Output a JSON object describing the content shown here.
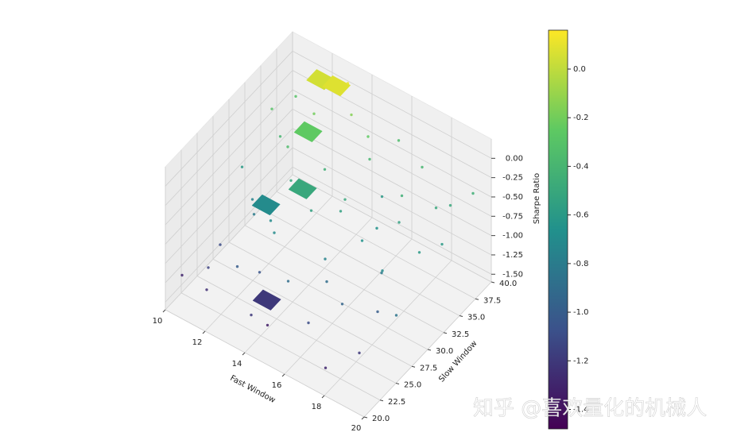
{
  "chart_data": {
    "type": "scatter3d",
    "xlabel": "Fast Window",
    "ylabel": "Slow Window",
    "zlabel": "Sharpe Ratio",
    "colormap": "viridis",
    "grid": true,
    "xlim": [
      10,
      20
    ],
    "ylim": [
      20,
      40
    ],
    "zlim": [
      -1.6,
      0.25
    ],
    "xticks": [
      10,
      12,
      14,
      16,
      18,
      20
    ],
    "yticks": [
      {
        "value": 20,
        "label": "20.0"
      },
      {
        "value": 22.5,
        "label": "22.5"
      },
      {
        "value": 25,
        "label": "25.0"
      },
      {
        "value": 27.5,
        "label": "27.5"
      },
      {
        "value": 30,
        "label": "30.0"
      },
      {
        "value": 32.5,
        "label": "32.5"
      },
      {
        "value": 35,
        "label": "35.0"
      },
      {
        "value": 37.5,
        "label": "37.5"
      },
      {
        "value": 40,
        "label": "40.0"
      }
    ],
    "zticks": [
      {
        "value": 0,
        "label": "0.00"
      },
      {
        "value": -0.25,
        "label": "-0.25"
      },
      {
        "value": -0.5,
        "label": "-0.50"
      },
      {
        "value": -0.75,
        "label": "-0.75"
      },
      {
        "value": -1,
        "label": "-1.00"
      },
      {
        "value": -1.25,
        "label": "-1.25"
      },
      {
        "value": -1.5,
        "label": "-1.50"
      }
    ],
    "clim": [
      -1.48,
      0.16
    ],
    "cticks": [
      {
        "value": 0,
        "label": "0.0"
      },
      -0.2,
      -0.4,
      -0.6,
      -0.8,
      {
        "value": -1,
        "label": "-1.0"
      },
      -1.2,
      -1.4
    ],
    "points": {
      "x": [
        10.2,
        10.5,
        10.8,
        11.0,
        11.3,
        11.6,
        11.9,
        12.2,
        12.5,
        12.8,
        13.1,
        13.4,
        13.7,
        14.0,
        14.3,
        14.6,
        14.9,
        15.2,
        15.5,
        15.8,
        16.1,
        16.4,
        16.7,
        17.0,
        17.3,
        17.6,
        17.9,
        18.2,
        18.5,
        18.8,
        19.1,
        19.4,
        19.7,
        10.4,
        11.2,
        12.0,
        12.9,
        13.6,
        14.5,
        15.3,
        16.2,
        17.1,
        18.0,
        18.9,
        19.6,
        11.5,
        13.3,
        15.0,
        16.8,
        18.6
      ],
      "y": [
        22.0,
        30.5,
        38.0,
        25.5,
        34.0,
        21.5,
        28.0,
        36.5,
        23.5,
        31.0,
        39.0,
        26.5,
        33.5,
        21.0,
        29.5,
        37.5,
        24.0,
        32.0,
        39.5,
        27.0,
        35.0,
        22.5,
        30.0,
        38.5,
        25.0,
        33.0,
        20.5,
        28.5,
        36.0,
        23.0,
        31.5,
        39.0,
        26.0,
        35.5,
        23.0,
        33.0,
        27.5,
        38.0,
        22.0,
        31.0,
        26.0,
        35.0,
        29.0,
        37.0,
        33.5,
        29.0,
        24.5,
        36.5,
        32.0,
        26.5
      ],
      "z": [
        -1.3,
        -0.6,
        -0.3,
        -1.1,
        -0.4,
        -1.25,
        -0.8,
        -0.2,
        -1.0,
        -0.5,
        0.1,
        -0.7,
        -0.45,
        -1.2,
        -0.55,
        -0.25,
        -0.9,
        -0.5,
        -0.35,
        -0.75,
        -0.6,
        -1.1,
        -0.65,
        -0.4,
        -0.95,
        -0.55,
        -1.3,
        -0.7,
        -0.5,
        -1.2,
        -0.6,
        -0.45,
        -0.85,
        -0.3,
        -1.15,
        -0.35,
        -0.7,
        -0.15,
        -1.35,
        -0.55,
        -0.9,
        -0.45,
        -0.8,
        -0.5,
        -0.6,
        -0.75,
        -1.05,
        -0.4,
        -0.65,
        -1.0
      ]
    },
    "surfaces": {
      "x": [
        11.5,
        12.3,
        12.0,
        13.0,
        11.8,
        13.6
      ],
      "y": [
        37.5,
        37.5,
        34.0,
        30.0,
        28.0,
        22.5
      ],
      "z": [
        0.05,
        0.08,
        -0.25,
        -0.5,
        -0.7,
        -1.2
      ]
    },
    "watermark": "知乎 @喜欢量化的机械人"
  }
}
